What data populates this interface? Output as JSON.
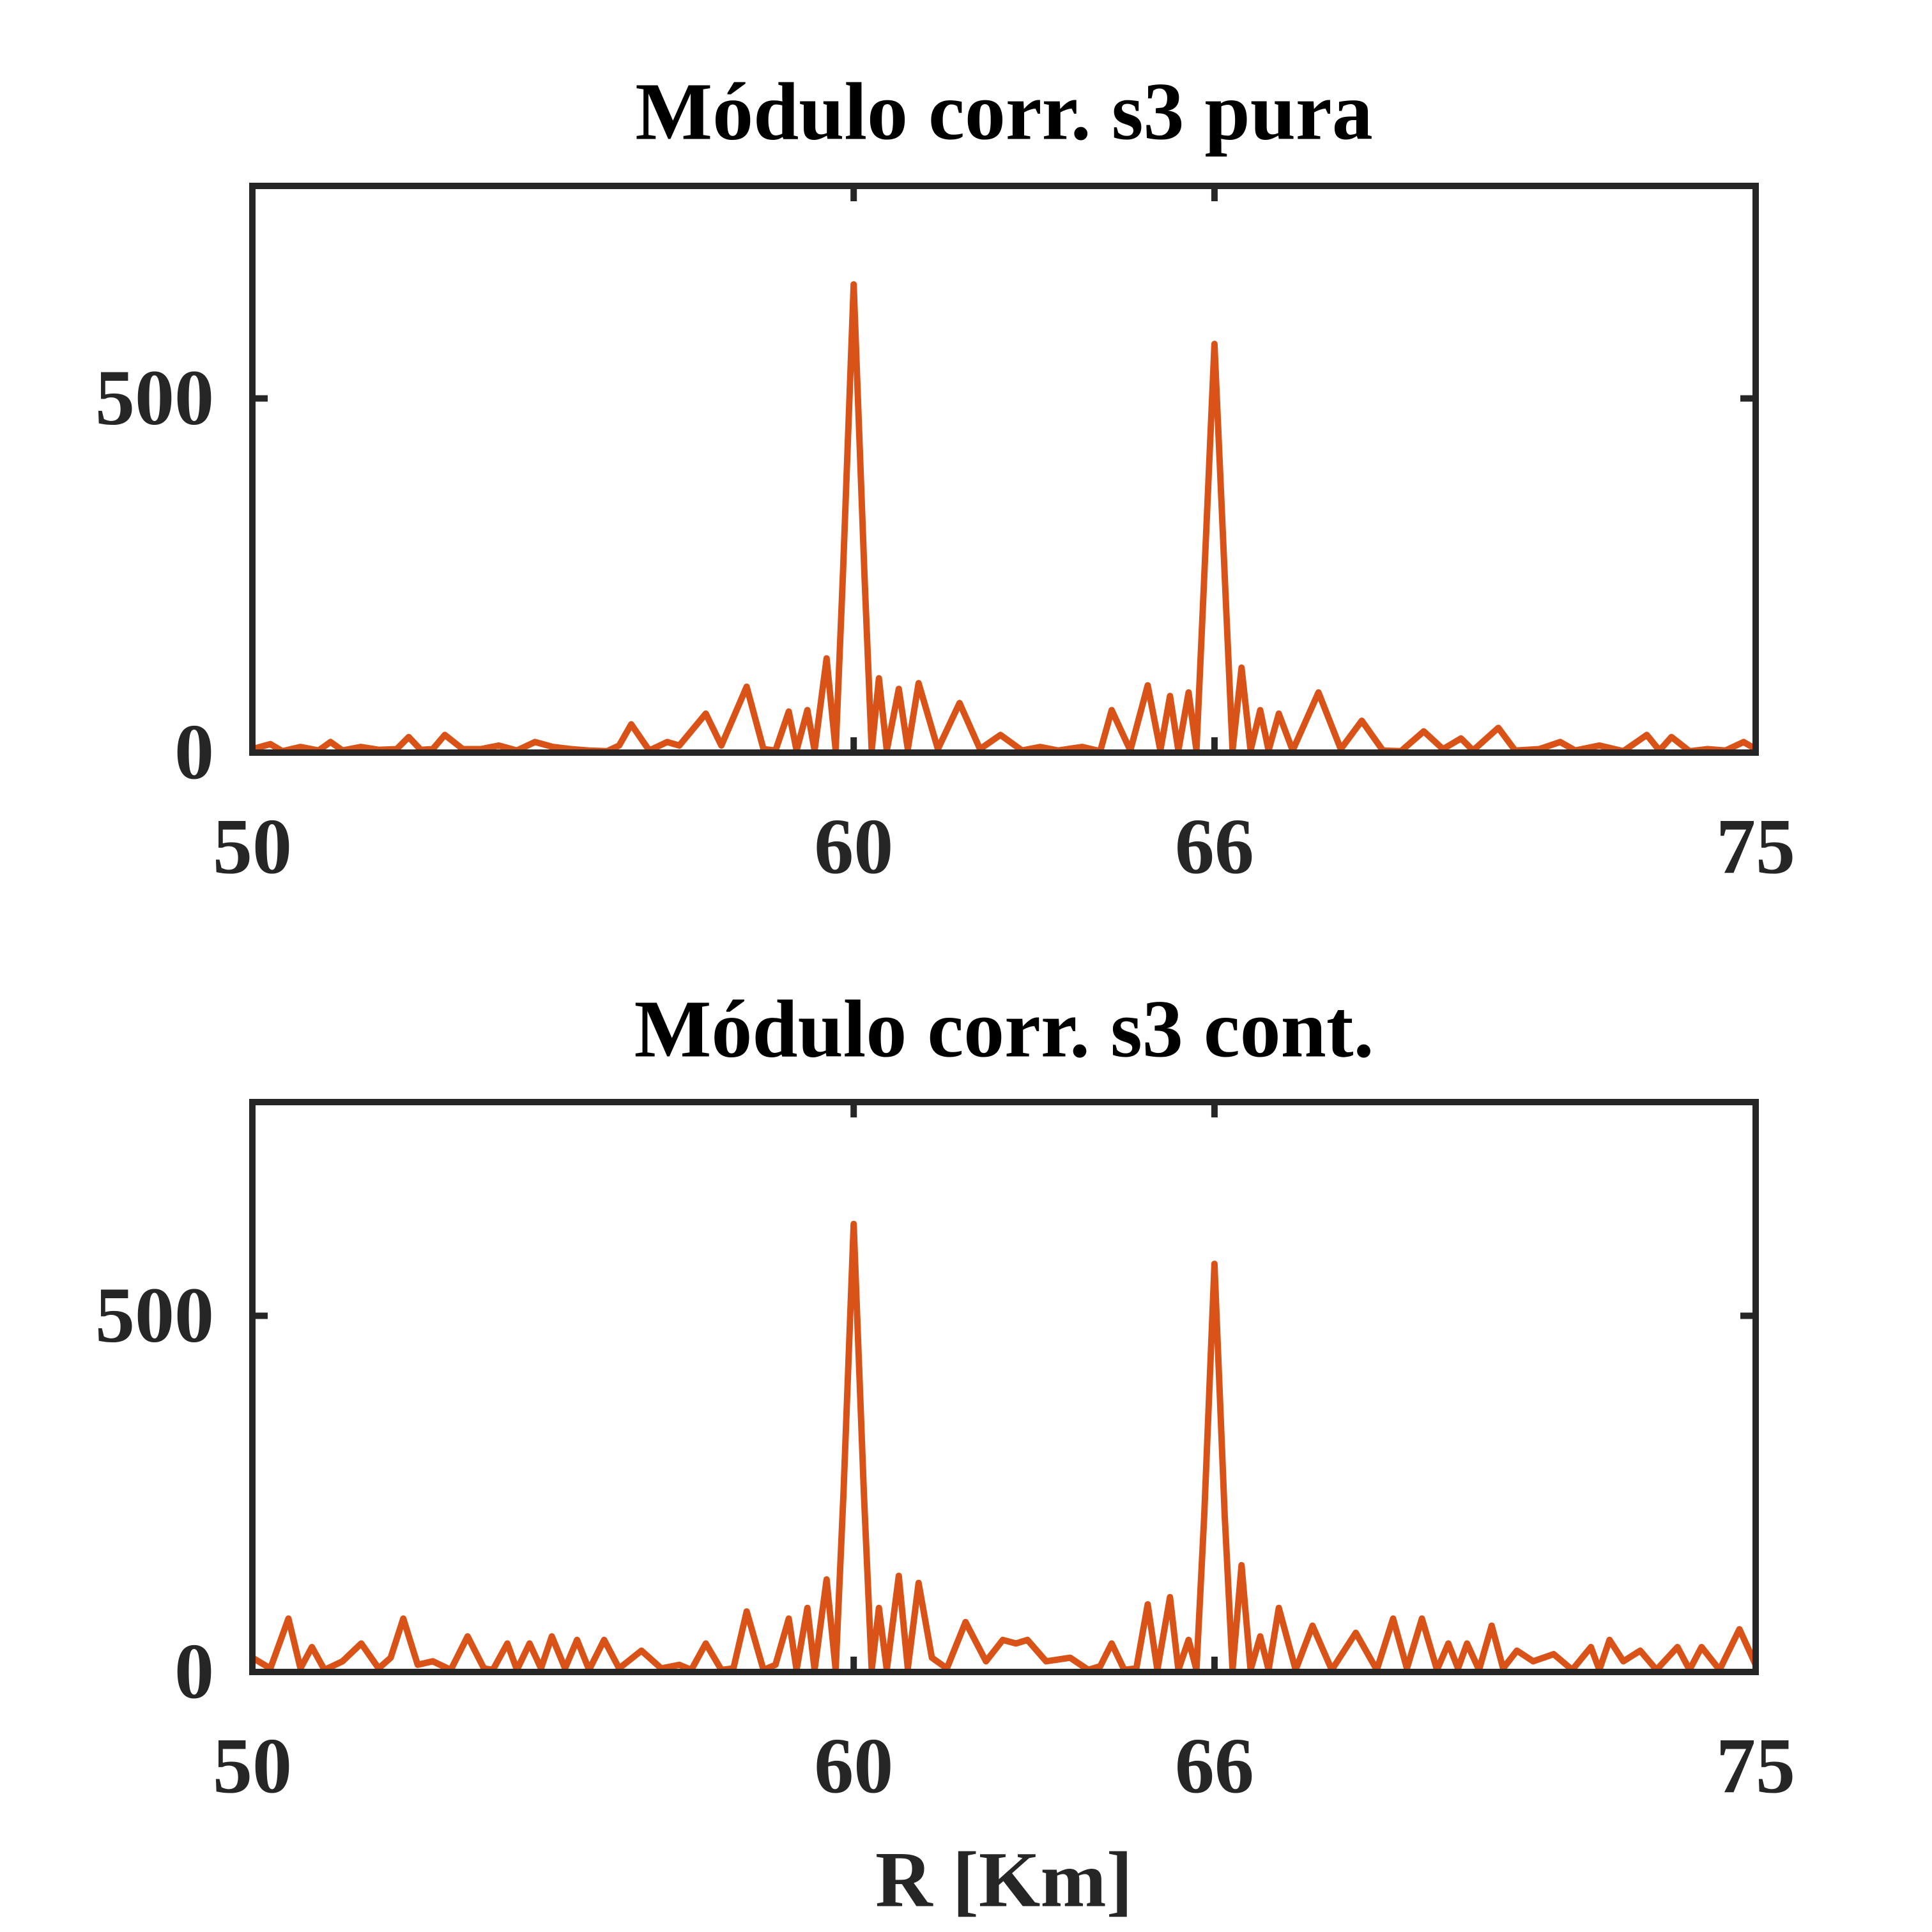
{
  "chart_data": [
    {
      "type": "line",
      "title": "Módulo corr. s3 pura",
      "xlim": [
        50,
        75
      ],
      "xticks": [
        50,
        60,
        66,
        75
      ],
      "ylim": [
        0,
        800
      ],
      "yticks": [
        0,
        500
      ],
      "x": [
        50,
        50.3,
        50.5,
        50.8,
        51.1,
        51.3,
        51.5,
        51.8,
        52.1,
        52.4,
        52.6,
        52.8,
        53.0,
        53.2,
        53.5,
        53.8,
        54.1,
        54.4,
        54.7,
        55.0,
        55.3,
        55.6,
        55.9,
        56.1,
        56.3,
        56.6,
        56.9,
        57.1,
        57.54,
        57.8,
        58.22,
        58.5,
        58.7,
        58.92,
        59.05,
        59.23,
        59.35,
        59.55,
        59.7,
        59.82,
        60.0,
        60.18,
        60.3,
        60.42,
        60.55,
        60.75,
        60.9,
        61.08,
        61.4,
        61.76,
        62.1,
        62.44,
        62.8,
        63.1,
        63.4,
        63.8,
        64.1,
        64.29,
        64.6,
        64.89,
        65.1,
        65.26,
        65.4,
        65.57,
        65.7,
        65.82,
        66.0,
        66.18,
        66.3,
        66.45,
        66.6,
        66.76,
        66.9,
        67.07,
        67.3,
        67.73,
        68.1,
        68.45,
        68.8,
        69.1,
        69.48,
        69.8,
        70.1,
        70.3,
        70.72,
        71.0,
        71.4,
        71.75,
        72.0,
        72.4,
        72.8,
        73.19,
        73.4,
        73.6,
        73.9,
        74.2,
        74.5,
        74.8,
        75
      ],
      "series": [
        {
          "color": "#d95319",
          "values": [
            5,
            12,
            2,
            8,
            3,
            15,
            3,
            8,
            4,
            5,
            22,
            4,
            5,
            25,
            5,
            5,
            10,
            3,
            15,
            8,
            5,
            3,
            2,
            10,
            40,
            3,
            15,
            10,
            55,
            10,
            93,
            5,
            3,
            58,
            3,
            60,
            3,
            133,
            3,
            250,
            661,
            250,
            3,
            105,
            3,
            90,
            5,
            98,
            5,
            70,
            5,
            25,
            3,
            8,
            3,
            8,
            2,
            60,
            3,
            95,
            3,
            80,
            3,
            85,
            3,
            230,
            577,
            230,
            3,
            120,
            3,
            60,
            3,
            55,
            3,
            85,
            5,
            45,
            3,
            2,
            30,
            5,
            20,
            3,
            35,
            3,
            5,
            15,
            3,
            10,
            2,
            25,
            3,
            22,
            2,
            5,
            3,
            15,
            5
          ]
        }
      ]
    },
    {
      "type": "line",
      "title": "Módulo corr. s3 cont.",
      "xlabel": "R [Km]",
      "xlim": [
        50,
        75
      ],
      "xticks": [
        50,
        60,
        66,
        75
      ],
      "ylim": [
        0,
        800
      ],
      "yticks": [
        0,
        500
      ],
      "x": [
        50,
        50.3,
        50.6,
        50.8,
        50.99,
        51.2,
        51.5,
        51.81,
        52.1,
        52.3,
        52.51,
        52.75,
        53.0,
        53.3,
        53.58,
        53.85,
        54.0,
        54.24,
        54.4,
        54.61,
        54.8,
        54.98,
        55.2,
        55.4,
        55.6,
        55.85,
        56.1,
        56.47,
        56.8,
        57.1,
        57.3,
        57.54,
        57.8,
        58.0,
        58.22,
        58.5,
        58.7,
        58.92,
        59.05,
        59.23,
        59.35,
        59.55,
        59.7,
        59.83,
        60.0,
        60.17,
        60.3,
        60.42,
        60.55,
        60.75,
        60.9,
        61.08,
        61.3,
        61.55,
        61.86,
        62.2,
        62.48,
        62.7,
        62.89,
        63.2,
        63.6,
        63.9,
        64.1,
        64.29,
        64.5,
        64.7,
        64.89,
        65.05,
        65.26,
        65.4,
        65.57,
        65.7,
        65.83,
        66.0,
        66.17,
        66.3,
        66.45,
        66.6,
        66.76,
        66.9,
        67.07,
        67.35,
        67.63,
        67.95,
        68.35,
        68.7,
        68.97,
        69.2,
        69.45,
        69.7,
        69.89,
        70.05,
        70.2,
        70.4,
        70.61,
        70.8,
        71.03,
        71.3,
        71.64,
        71.95,
        72.26,
        72.4,
        72.57,
        72.8,
        73.08,
        73.35,
        73.7,
        73.9,
        74.1,
        74.4,
        74.73,
        75
      ],
      "series": [
        {
          "color": "#d95319",
          "values": [
            20,
            5,
            75,
            5,
            35,
            3,
            15,
            40,
            5,
            20,
            75,
            10,
            15,
            3,
            50,
            5,
            3,
            40,
            3,
            40,
            5,
            50,
            5,
            45,
            3,
            45,
            5,
            30,
            5,
            10,
            3,
            40,
            3,
            5,
            85,
            3,
            10,
            75,
            3,
            90,
            3,
            130,
            3,
            250,
            629,
            250,
            3,
            90,
            3,
            135,
            5,
            125,
            20,
            5,
            70,
            15,
            45,
            40,
            45,
            15,
            20,
            3,
            8,
            40,
            3,
            5,
            95,
            3,
            105,
            3,
            45,
            3,
            220,
            573,
            220,
            3,
            150,
            3,
            50,
            3,
            90,
            3,
            65,
            3,
            55,
            3,
            75,
            5,
            75,
            3,
            40,
            5,
            40,
            3,
            65,
            5,
            30,
            15,
            25,
            3,
            35,
            3,
            45,
            15,
            30,
            3,
            35,
            3,
            35,
            3,
            60,
            10
          ]
        }
      ]
    }
  ]
}
